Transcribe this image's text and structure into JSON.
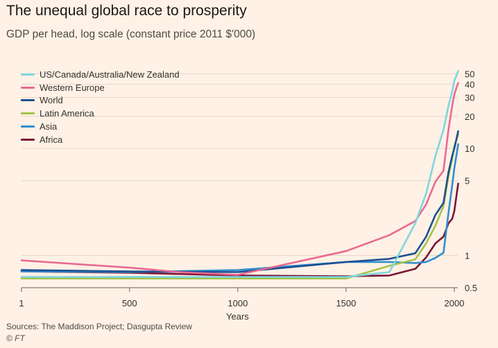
{
  "title": "The unequal global race to prosperity",
  "subtitle": "GDP per head, log scale (constant price 2011 $'000)",
  "source": "Sources: The Maddison Project; Dasgupta Review",
  "credit": "© FT",
  "chart_data": {
    "type": "line",
    "title": "The unequal global race to prosperity",
    "subtitle": "GDP per head, log scale (constant price 2011 $'000)",
    "xlabel": "Years",
    "ylabel": "",
    "xlim": [
      1,
      2020
    ],
    "ylim": [
      0.5,
      55
    ],
    "y_scale": "log",
    "x_ticks": [
      1,
      500,
      1000,
      1500,
      2000
    ],
    "x_tick_labels": [
      "1",
      "500",
      "1000",
      "1500",
      "2000"
    ],
    "y_ticks": [
      0.5,
      1,
      5,
      10,
      20,
      30,
      40,
      50
    ],
    "y_tick_labels": [
      "0.5",
      "1",
      "5",
      "10",
      "20",
      "30",
      "40",
      "50"
    ],
    "y_axis_side": "right",
    "grid": true,
    "legend_position": "top-left",
    "series": [
      {
        "name": "US/Canada/Australia/New Zealand",
        "color": "#7ed6df",
        "points": [
          [
            1,
            0.63
          ],
          [
            1000,
            0.63
          ],
          [
            1500,
            0.63
          ],
          [
            1700,
            0.7
          ],
          [
            1820,
            2.0
          ],
          [
            1870,
            3.8
          ],
          [
            1913,
            8.5
          ],
          [
            1950,
            15
          ],
          [
            1973,
            25
          ],
          [
            1990,
            34
          ],
          [
            2000,
            43
          ],
          [
            2010,
            48
          ],
          [
            2018,
            53
          ]
        ]
      },
      {
        "name": "Western Europe",
        "color": "#e86a92",
        "points": [
          [
            1,
            0.9
          ],
          [
            500,
            0.77
          ],
          [
            730,
            0.7
          ],
          [
            1000,
            0.66
          ],
          [
            1500,
            1.1
          ],
          [
            1700,
            1.55
          ],
          [
            1820,
            2.1
          ],
          [
            1870,
            3.0
          ],
          [
            1913,
            4.9
          ],
          [
            1950,
            6.2
          ],
          [
            1973,
            15
          ],
          [
            1990,
            25
          ],
          [
            2000,
            32
          ],
          [
            2010,
            37
          ],
          [
            2018,
            41
          ]
        ]
      },
      {
        "name": "World",
        "color": "#1d4f91",
        "points": [
          [
            1,
            0.73
          ],
          [
            500,
            0.71
          ],
          [
            1000,
            0.7
          ],
          [
            1500,
            0.87
          ],
          [
            1700,
            0.93
          ],
          [
            1820,
            1.05
          ],
          [
            1870,
            1.5
          ],
          [
            1913,
            2.4
          ],
          [
            1950,
            3.1
          ],
          [
            1973,
            6.0
          ],
          [
            1990,
            8.5
          ],
          [
            2000,
            10.0
          ],
          [
            2018,
            14.5
          ]
        ]
      },
      {
        "name": "Latin America",
        "color": "#a3c34a",
        "points": [
          [
            1,
            0.61
          ],
          [
            1000,
            0.61
          ],
          [
            1500,
            0.61
          ],
          [
            1700,
            0.8
          ],
          [
            1820,
            0.92
          ],
          [
            1870,
            1.3
          ],
          [
            1913,
            1.9
          ],
          [
            1950,
            2.9
          ],
          [
            1973,
            5.5
          ],
          [
            1990,
            8.0
          ],
          [
            2000,
            10.5
          ],
          [
            2018,
            13.5
          ]
        ]
      },
      {
        "name": "Asia",
        "color": "#2f8ecf",
        "points": [
          [
            1,
            0.71
          ],
          [
            500,
            0.7
          ],
          [
            1000,
            0.73
          ],
          [
            1500,
            0.87
          ],
          [
            1700,
            0.87
          ],
          [
            1820,
            0.85
          ],
          [
            1870,
            0.87
          ],
          [
            1913,
            0.95
          ],
          [
            1950,
            1.06
          ],
          [
            1973,
            2.5
          ],
          [
            1990,
            4.5
          ],
          [
            2000,
            6.5
          ],
          [
            2018,
            11
          ]
        ]
      },
      {
        "name": "Africa",
        "color": "#7a1536",
        "points": [
          [
            1,
            0.71
          ],
          [
            500,
            0.69
          ],
          [
            1000,
            0.65
          ],
          [
            1500,
            0.64
          ],
          [
            1700,
            0.65
          ],
          [
            1820,
            0.75
          ],
          [
            1870,
            0.96
          ],
          [
            1913,
            1.3
          ],
          [
            1950,
            1.5
          ],
          [
            1973,
            2.0
          ],
          [
            1990,
            2.2
          ],
          [
            2000,
            2.6
          ],
          [
            2018,
            4.7
          ]
        ]
      }
    ]
  }
}
